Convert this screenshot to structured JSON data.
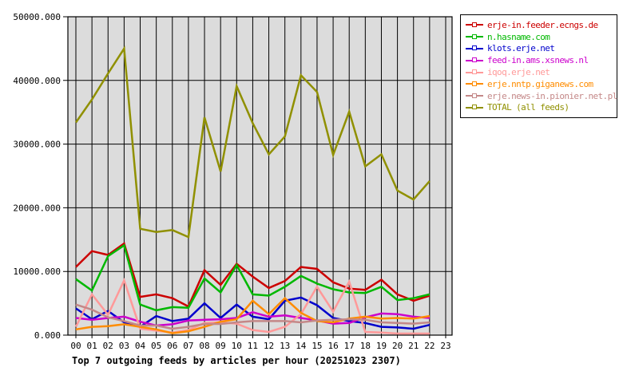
{
  "chart_data": {
    "type": "line",
    "title": "Top 7 outgoing feeds by articles per hour (20251023 2307)",
    "xlabel": "",
    "ylabel": "",
    "ylim": [
      0,
      50000
    ],
    "grid": true,
    "plot_bg_color": "#dcdcdc",
    "grid_color": "#000000",
    "axis_color": "#000000",
    "legend_position": "top-right",
    "x_tick_labels": [
      "00",
      "01",
      "02",
      "03",
      "04",
      "05",
      "06",
      "07",
      "08",
      "09",
      "10",
      "11",
      "12",
      "13",
      "14",
      "15",
      "16",
      "17",
      "18",
      "19",
      "20",
      "21",
      "22",
      "23"
    ],
    "y_ticks": [
      {
        "value": 0,
        "label": "0.000"
      },
      {
        "value": 10000,
        "label": "10000.000"
      },
      {
        "value": 20000,
        "label": "20000.000"
      },
      {
        "value": 30000,
        "label": "30000.000"
      },
      {
        "value": 40000,
        "label": "40000.000"
      },
      {
        "value": 50000,
        "label": "50000.000"
      }
    ],
    "note_hours_with_data": "00-22",
    "series": [
      {
        "name": "erje-in.feeder.ecngs.de",
        "color": "#cc0000",
        "values": [
          10700,
          13200,
          12600,
          14400,
          6000,
          6400,
          5800,
          4500,
          10200,
          7900,
          11200,
          9200,
          7400,
          8500,
          10700,
          10400,
          8300,
          7300,
          7100,
          8700,
          6400,
          5400,
          6200
        ]
      },
      {
        "name": "n.hasname.com",
        "color": "#00b800",
        "values": [
          8800,
          7000,
          12400,
          14100,
          4800,
          3900,
          4400,
          4300,
          8900,
          6700,
          11000,
          6400,
          6200,
          7600,
          9300,
          8100,
          7200,
          6700,
          6600,
          7600,
          5500,
          5800,
          6400
        ]
      },
      {
        "name": "klots.erje.net",
        "color": "#0000cc",
        "values": [
          4200,
          2500,
          3800,
          2000,
          1300,
          3000,
          2200,
          2600,
          5000,
          2700,
          4800,
          2900,
          2500,
          5400,
          5900,
          4700,
          2700,
          2200,
          1900,
          1300,
          1200,
          1000,
          1600
        ]
      },
      {
        "name": "feed-in.ams.xsnews.nl",
        "color": "#cc00cc",
        "values": [
          2700,
          2400,
          2700,
          2900,
          2100,
          1500,
          1700,
          2300,
          2400,
          2500,
          2700,
          3600,
          2900,
          3100,
          2700,
          2300,
          1800,
          1900,
          2800,
          3400,
          3300,
          2900,
          2700
        ]
      },
      {
        "name": "iqoq.erje.net",
        "color": "#ff9999",
        "values": [
          1300,
          6400,
          3200,
          8600,
          1000,
          700,
          400,
          800,
          1900,
          2000,
          1800,
          800,
          500,
          1300,
          3300,
          7600,
          3700,
          8400,
          500,
          400,
          250,
          250,
          250
        ]
      },
      {
        "name": "erje.nntp.giganews.com",
        "color": "#ff8c00",
        "values": [
          900,
          1300,
          1400,
          1700,
          1300,
          900,
          300,
          600,
          1300,
          2100,
          2500,
          5400,
          3300,
          5800,
          3500,
          2200,
          2000,
          2600,
          2900,
          2600,
          2700,
          2600,
          3000
        ]
      },
      {
        "name": "erje.news-in.pionier.net.pl",
        "color": "#c48888",
        "values": [
          4800,
          4000,
          2800,
          2200,
          1500,
          1500,
          1000,
          1300,
          1750,
          1750,
          2000,
          2200,
          2200,
          2200,
          2000,
          2300,
          2400,
          2500,
          2400,
          2000,
          1900,
          1800,
          2000
        ]
      },
      {
        "name": "TOTAL (all feeds)",
        "color": "#909000",
        "values": [
          33400,
          37000,
          41100,
          45000,
          16700,
          16200,
          16500,
          15400,
          34200,
          25700,
          39100,
          33300,
          28400,
          31200,
          40800,
          38200,
          28300,
          35100,
          26500,
          28400,
          22700,
          21300,
          24200
        ]
      }
    ]
  }
}
